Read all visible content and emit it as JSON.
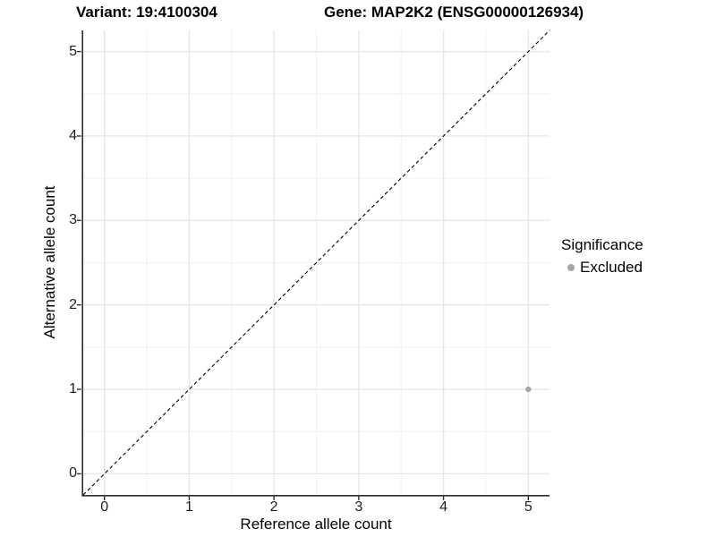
{
  "header": {
    "title_left": "Variant: 19:4100304",
    "title_right": "Gene: MAP2K2 (ENSG00000126934)"
  },
  "axes": {
    "x": {
      "label": "Reference allele count",
      "tick_labels": [
        "0",
        "1",
        "2",
        "3",
        "4",
        "5"
      ]
    },
    "y": {
      "label": "Alternative allele count",
      "tick_labels": [
        "0",
        "1",
        "2",
        "3",
        "4",
        "5"
      ]
    }
  },
  "legend": {
    "title": "Significance",
    "items": [
      {
        "label": "Excluded",
        "color": "#a6a6a6",
        "marker": "dot"
      }
    ]
  },
  "chart_data": {
    "type": "scatter",
    "title": "Variant: 19:4100304 | Gene: MAP2K2 (ENSG00000126934)",
    "xlabel": "Reference allele count",
    "ylabel": "Alternative allele count",
    "xlim": [
      -0.25,
      5.25
    ],
    "ylim": [
      -0.25,
      5.25
    ],
    "x_ticks": [
      0,
      1,
      2,
      3,
      4,
      5
    ],
    "y_ticks": [
      0,
      1,
      2,
      3,
      4,
      5
    ],
    "x_minor_ticks": [
      0.5,
      1.5,
      2.5,
      3.5,
      4.5
    ],
    "y_minor_ticks": [
      0.5,
      1.5,
      2.5,
      3.5,
      4.5
    ],
    "grid": "major+minor",
    "legend_position": "right",
    "series": [
      {
        "name": "Excluded",
        "color": "#a6a6a6",
        "marker": "circle",
        "points": [
          [
            5,
            1
          ]
        ]
      }
    ],
    "reference_line": {
      "style": "dashed",
      "color": "#000000",
      "slope": 1,
      "intercept": 0
    }
  },
  "colors": {
    "background": "#ffffff",
    "axis_line": "#2e2e2e",
    "grid_major": "#e6e6e6",
    "grid_minor": "#f1f1f1",
    "tick_text": "#1f1f1f",
    "point": "#a6a6a6"
  }
}
